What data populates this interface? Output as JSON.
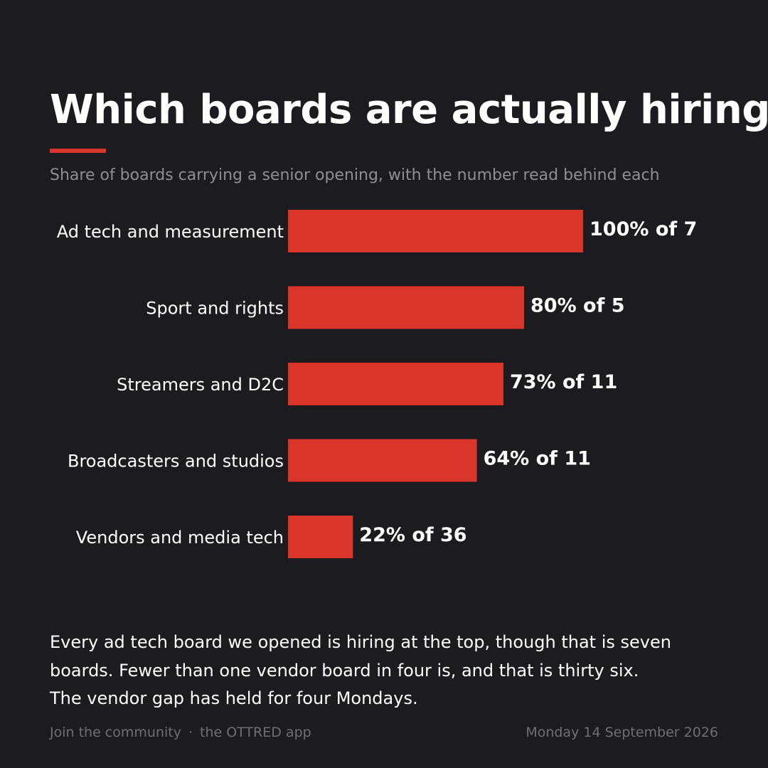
{
  "title": "Which boards are actually hiring",
  "subtitle": "Share of boards carrying a senior opening, with the number read behind each",
  "colors": {
    "background": "#1c1c20",
    "accent": "#d9352b",
    "text": "#ffffff",
    "muted": "#8e8e93"
  },
  "chart_data": {
    "type": "bar",
    "orientation": "horizontal",
    "categories": [
      "Ad tech and measurement",
      "Sport and rights",
      "Streamers and D2C",
      "Broadcasters and studios",
      "Vendors and media tech"
    ],
    "values": [
      100,
      80,
      73,
      64,
      22
    ],
    "data_labels": [
      "100% of 7",
      "80% of 5",
      "73% of 11",
      "64% of 11",
      "22% of 36"
    ],
    "xlim": [
      0,
      100
    ],
    "grid": false,
    "legend": "none"
  },
  "commentary": "Every ad tech board we opened is hiring at the top, though that is seven boards. Fewer than one vendor board in four is, and that is thirty six. The vendor gap has held for four Mondays.",
  "footer": {
    "community": "Join the community",
    "separator": "·",
    "app": "the OTTRED app",
    "date": "Monday 14 September 2026"
  }
}
